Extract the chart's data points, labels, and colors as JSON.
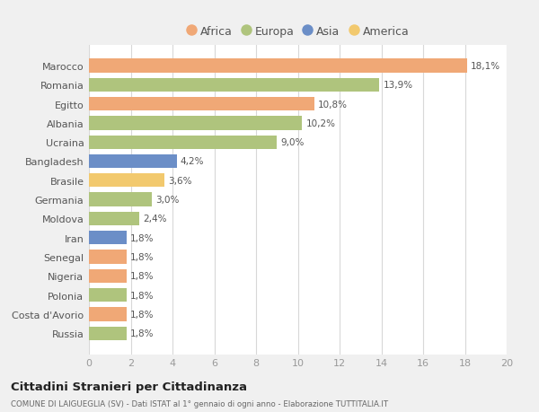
{
  "categories": [
    "Russia",
    "Costa d'Avorio",
    "Polonia",
    "Nigeria",
    "Senegal",
    "Iran",
    "Moldova",
    "Germania",
    "Brasile",
    "Bangladesh",
    "Ucraina",
    "Albania",
    "Egitto",
    "Romania",
    "Marocco"
  ],
  "values": [
    1.8,
    1.8,
    1.8,
    1.8,
    1.8,
    1.8,
    2.4,
    3.0,
    3.6,
    4.2,
    9.0,
    10.2,
    10.8,
    13.9,
    18.1
  ],
  "colors": [
    "#afc47d",
    "#f0a876",
    "#afc47d",
    "#f0a876",
    "#f0a876",
    "#6b8ec7",
    "#afc47d",
    "#afc47d",
    "#f2c96e",
    "#6b8ec7",
    "#afc47d",
    "#afc47d",
    "#f0a876",
    "#afc47d",
    "#f0a876"
  ],
  "labels": [
    "1,8%",
    "1,8%",
    "1,8%",
    "1,8%",
    "1,8%",
    "1,8%",
    "2,4%",
    "3,0%",
    "3,6%",
    "4,2%",
    "9,0%",
    "10,2%",
    "10,8%",
    "13,9%",
    "18,1%"
  ],
  "xlim": [
    0,
    20
  ],
  "xticks": [
    0,
    2,
    4,
    6,
    8,
    10,
    12,
    14,
    16,
    18,
    20
  ],
  "legend_items": [
    {
      "label": "Africa",
      "color": "#f0a876"
    },
    {
      "label": "Europa",
      "color": "#afc47d"
    },
    {
      "label": "Asia",
      "color": "#6b8ec7"
    },
    {
      "label": "America",
      "color": "#f2c96e"
    }
  ],
  "title": "Cittadini Stranieri per Cittadinanza",
  "subtitle": "COMUNE DI LAIGUEGLIA (SV) - Dati ISTAT al 1° gennaio di ogni anno - Elaborazione TUTTITALIA.IT",
  "background_color": "#f0f0f0",
  "plot_bg_color": "#ffffff",
  "grid_color": "#d8d8d8",
  "label_color": "#555555",
  "ytick_color": "#555555",
  "xtick_color": "#999999"
}
